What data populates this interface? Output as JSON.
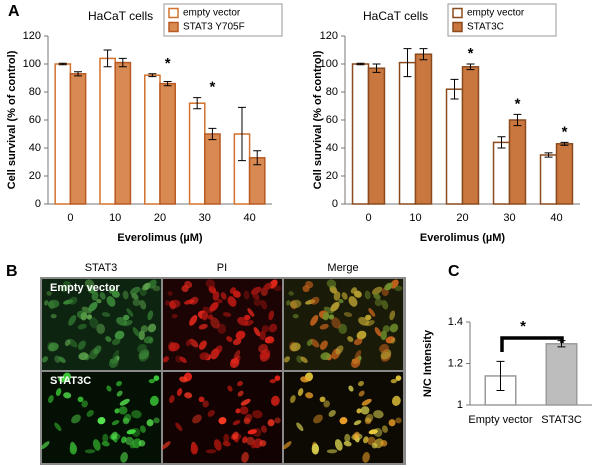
{
  "figure": {
    "panel_labels": [
      "A",
      "B",
      "C"
    ],
    "microscopy": {
      "columns": [
        "STAT3",
        "PI",
        "Merge"
      ],
      "rows": [
        "Empty vector",
        "STAT3C"
      ]
    }
  },
  "chart_data": [
    {
      "type": "bar",
      "title": "HaCaT cells",
      "y_label": "Cell survival (% of control)",
      "x_label": "Everolimus (µM)",
      "categories": [
        "0",
        "10",
        "20",
        "30",
        "40"
      ],
      "series": [
        {
          "name": "empty vector",
          "color": "#d2722e",
          "fill": "#ffffff",
          "values": [
            100,
            104,
            92,
            72,
            50
          ],
          "errors": [
            0.5,
            6,
            1,
            4,
            19
          ]
        },
        {
          "name": "STAT3 Y705F",
          "color": "#b85a22",
          "fill": "#d98a52",
          "values": [
            93,
            101,
            86,
            50,
            33
          ],
          "errors": [
            1.5,
            3,
            1.5,
            4,
            5
          ]
        }
      ],
      "ylim": [
        0,
        120
      ],
      "yticks": [
        0,
        20,
        40,
        60,
        80,
        100,
        120
      ],
      "annotations": [
        {
          "text": "*",
          "category": "20"
        },
        {
          "text": "*",
          "category": "30"
        }
      ],
      "legend": "top-right"
    },
    {
      "type": "bar",
      "title": "HaCaT cells",
      "y_label": "Cell survival (% of control)",
      "x_label": "Everolimus (µM)",
      "categories": [
        "0",
        "10",
        "20",
        "30",
        "40"
      ],
      "series": [
        {
          "name": "empty vector",
          "color": "#8a4a1e",
          "fill": "#ffffff",
          "values": [
            100,
            101,
            82,
            44,
            35
          ],
          "errors": [
            0.5,
            10,
            7,
            4,
            1.5
          ]
        },
        {
          "name": "STAT3C",
          "color": "#8a4a1e",
          "fill": "#c9773e",
          "values": [
            97,
            107,
            98,
            60,
            43
          ],
          "errors": [
            3,
            4,
            2,
            4,
            1
          ]
        }
      ],
      "ylim": [
        0,
        120
      ],
      "yticks": [
        0,
        20,
        40,
        60,
        80,
        100,
        120
      ],
      "annotations": [
        {
          "text": "*",
          "category": "20"
        },
        {
          "text": "*",
          "category": "30"
        },
        {
          "text": "*",
          "category": "40"
        }
      ],
      "legend": "top-right"
    },
    {
      "type": "bar",
      "y_label": "N/C Intensity",
      "categories": [
        "Empty vector",
        "STAT3C"
      ],
      "values": [
        1.14,
        1.295
      ],
      "errors": [
        0.07,
        0.015
      ],
      "colors": [
        "#ffffff",
        "#bdbdbd"
      ],
      "edgecolor": "#9a9a9a",
      "ylim": [
        1,
        1.4
      ],
      "yticks": [
        1,
        1.2,
        1.4
      ],
      "annotations": [
        {
          "text": "*"
        }
      ]
    }
  ]
}
